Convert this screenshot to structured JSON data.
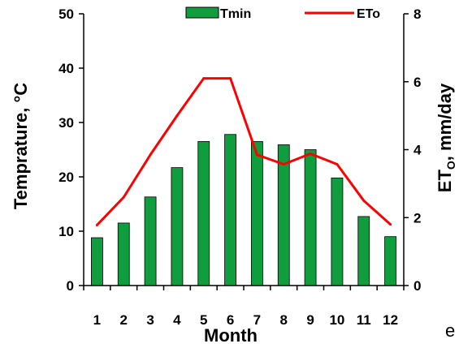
{
  "chart_data": {
    "type": "bar",
    "categories": [
      "1",
      "2",
      "3",
      "4",
      "5",
      "6",
      "7",
      "8",
      "9",
      "10",
      "11",
      "12"
    ],
    "series": [
      {
        "name": "Tmin",
        "kind": "bar",
        "axis": "left",
        "color": "#0f9d3e",
        "values": [
          8.8,
          11.5,
          16.3,
          21.7,
          26.5,
          27.8,
          26.5,
          25.9,
          25.0,
          19.8,
          12.7,
          9.0
        ]
      },
      {
        "name": "ETo",
        "kind": "line",
        "axis": "right",
        "color": "#ff0000",
        "values": [
          1.78,
          2.6,
          3.85,
          5.0,
          6.1,
          6.1,
          3.85,
          3.57,
          3.88,
          3.57,
          2.5,
          1.8
        ]
      }
    ],
    "xlabel": "Month",
    "ylabel": "Temprature, °C",
    "y2label_main": "ET",
    "y2label_sub": "O",
    "y2label_rest": ", mm/day",
    "ylim": [
      0,
      50
    ],
    "yticks": [
      "0",
      "10",
      "20",
      "30",
      "40",
      "50"
    ],
    "y2lim": [
      0,
      8
    ],
    "y2ticks": [
      "0",
      "2",
      "4",
      "6",
      "8"
    ],
    "legend": "top",
    "grid": false
  },
  "panel_letter": "e"
}
